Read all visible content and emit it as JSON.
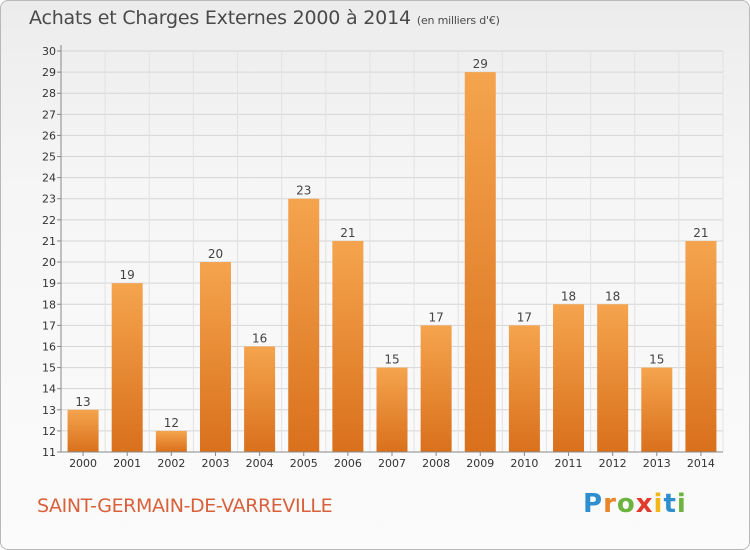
{
  "title": "Achats et Charges Externes 2000 à 2014",
  "subtitle": "(en milliers d'€)",
  "commune": "SAINT-GERMAIN-DE-VARREVILLE",
  "logo": {
    "letters": [
      "P",
      "r",
      "o",
      "x",
      "i",
      "t",
      "i"
    ],
    "colors": [
      "#2e8fd0",
      "#e8862a",
      "#6cb33f",
      "#e23a2c",
      "#f2b51a",
      "#2e8fd0",
      "#6cb33f"
    ]
  },
  "chart_data": {
    "type": "bar",
    "categories": [
      "2000",
      "2001",
      "2002",
      "2003",
      "2004",
      "2005",
      "2006",
      "2007",
      "2008",
      "2009",
      "2010",
      "2011",
      "2012",
      "2013",
      "2014"
    ],
    "values": [
      13,
      19,
      12,
      20,
      16,
      23,
      21,
      15,
      17,
      29,
      17,
      18,
      18,
      15,
      21
    ],
    "ylim": [
      11,
      30
    ],
    "yticks": [
      11,
      12,
      13,
      14,
      15,
      16,
      17,
      18,
      19,
      20,
      21,
      22,
      23,
      24,
      25,
      26,
      27,
      28,
      29,
      30
    ],
    "xlabel": "",
    "ylabel": "",
    "grid": true,
    "bar_color_top": "#f5a44e",
    "bar_color_bottom": "#d9701c"
  }
}
